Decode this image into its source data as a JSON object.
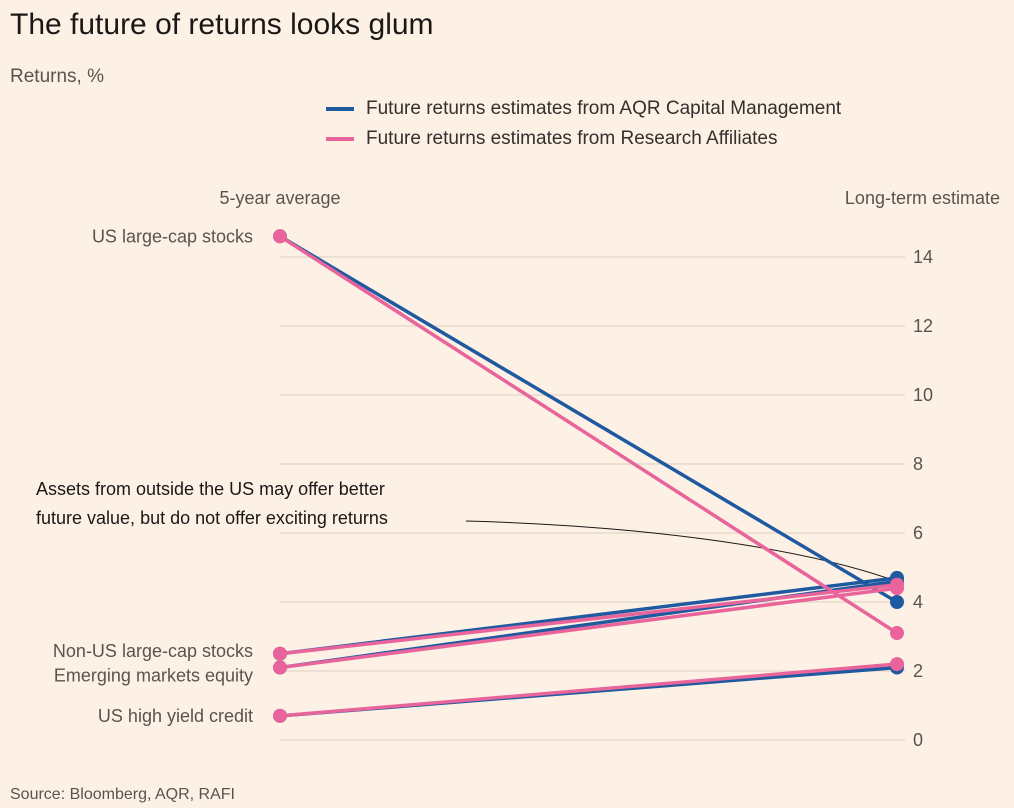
{
  "header": {
    "title": "The future of returns looks glum",
    "subtitle": "Returns, %"
  },
  "source": "Source: Bloomberg, AQR, RAFI",
  "chart_data": {
    "type": "line",
    "x_labels": [
      "5-year average",
      "Long-term estimate"
    ],
    "ylim": [
      0,
      15
    ],
    "yticks": [
      0,
      2,
      4,
      6,
      8,
      10,
      12,
      14
    ],
    "grid": true,
    "legend_position": "top",
    "annotation": {
      "lines": [
        "Assets from outside the US may offer better",
        "future value, but do not offer exciting returns"
      ]
    },
    "categories": [
      "US large-cap stocks",
      "Non-US large-cap stocks",
      "Emerging markets equity",
      "US high yield credit"
    ],
    "series": [
      {
        "name": "Future returns estimates from AQR Capital Management",
        "color": "#1f5aa0",
        "start": [
          14.6,
          2.5,
          2.1,
          0.7
        ],
        "end": [
          4.0,
          4.7,
          4.6,
          2.1
        ]
      },
      {
        "name": "Future returns estimates from Research Affiliates",
        "color": "#e8649a",
        "start": [
          14.6,
          2.5,
          2.1,
          0.7
        ],
        "end": [
          3.1,
          4.5,
          4.4,
          2.2
        ]
      }
    ]
  }
}
